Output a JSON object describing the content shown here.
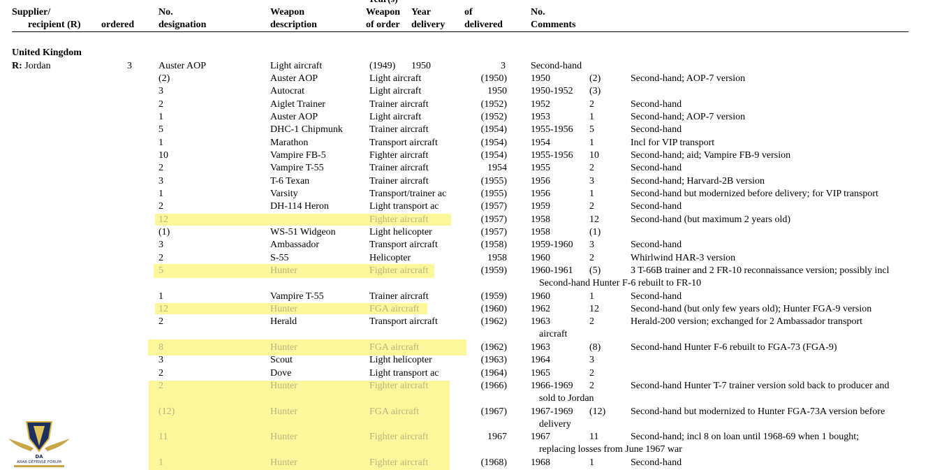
{
  "header": {
    "supplier": "Supplier/",
    "recipient": "recipient (R)",
    "ordered": "ordered",
    "no": "No.",
    "designation": "designation",
    "weapon": "Weapon",
    "description": "description",
    "years": "Year(s)",
    "weapon_of_order_1": "Weapon",
    "weapon_of_order_2": "of order",
    "year": "Year",
    "delivery": "delivery",
    "of": "of",
    "delivered": "delivered",
    "no2": "No.",
    "comments": "Comments"
  },
  "section": {
    "supplier": "United Kingdom",
    "recipient_prefix": "R:",
    "recipient": "Jordan"
  },
  "rows": [
    {
      "ordered": "3",
      "designation": "Auster AOP",
      "description": "Light aircraft",
      "order_year": "(1949)",
      "delivery": "1950",
      "delivered": "3",
      "comments": "Second-hand"
    },
    {
      "ordered": "(2)",
      "designation": "Auster AOP",
      "description": "Light aircraft",
      "order_year": "(1950)",
      "delivery": "1950",
      "delivered": "(2)",
      "comments": "Second-hand; AOP-7 version"
    },
    {
      "ordered": "3",
      "designation": "Autocrat",
      "description": "Light aircraft",
      "order_year": "1950",
      "delivery": "1950-1952",
      "delivered": "(3)",
      "comments": ""
    },
    {
      "ordered": "2",
      "designation": "Aiglet Trainer",
      "description": "Trainer aircraft",
      "order_year": "(1952)",
      "delivery": "1952",
      "delivered": "2",
      "comments": "Second-hand"
    },
    {
      "ordered": "1",
      "designation": "Auster AOP",
      "description": "Light aircraft",
      "order_year": "(1952)",
      "delivery": "1953",
      "delivered": "1",
      "comments": "Second-hand; AOP-7 version"
    },
    {
      "ordered": "5",
      "designation": "DHC-1 Chipmunk",
      "description": "Trainer aircraft",
      "order_year": "(1954)",
      "delivery": "1955-1956",
      "delivered": "5",
      "comments": "Second-hand"
    },
    {
      "ordered": "1",
      "designation": "Marathon",
      "description": "Transport aircraft",
      "order_year": "(1954)",
      "delivery": "1954",
      "delivered": "1",
      "comments": "Incl for VIP transport"
    },
    {
      "ordered": "10",
      "designation": "Vampire FB-5",
      "description": "Fighter aircraft",
      "order_year": "(1954)",
      "delivery": "1955-1956",
      "delivered": "10",
      "comments": "Second-hand; aid; Vampire FB-9 version"
    },
    {
      "ordered": "2",
      "designation": "Vampire T-55",
      "description": "Trainer aircraft",
      "order_year": "1954",
      "delivery": "1955",
      "delivered": "2",
      "comments": "Second-hand"
    },
    {
      "ordered": "3",
      "designation": "T-6 Texan",
      "description": "Trainer aircraft",
      "order_year": "(1955)",
      "delivery": "1956",
      "delivered": "3",
      "comments": "Second-hand; Harvard-2B version"
    },
    {
      "ordered": "1",
      "designation": "Varsity",
      "description": "Transport/trainer ac",
      "order_year": "(1955)",
      "delivery": "1956",
      "delivered": "1",
      "comments": "Second-hand but modernized before delivery; for VIP transport"
    },
    {
      "ordered": "2",
      "designation": "DH-114 Heron",
      "description": "Light transport ac",
      "order_year": "(1957)",
      "delivery": "1959",
      "delivered": "2",
      "comments": "Second-hand"
    },
    {
      "ordered": "12",
      "designation": "",
      "description": "Fighter aircraft",
      "order_year": "(1957)",
      "delivery": "1958",
      "delivered": "12",
      "comments": "Second-hand (but maximum 2 years old)"
    },
    {
      "ordered": "(1)",
      "designation": "WS-51 Widgeon",
      "description": "Light helicopter",
      "order_year": "(1957)",
      "delivery": "1958",
      "delivered": "(1)",
      "comments": ""
    },
    {
      "ordered": "3",
      "designation": "Ambassador",
      "description": "Transport aircraft",
      "order_year": "(1958)",
      "delivery": "1959-1960",
      "delivered": "3",
      "comments": "Second-hand"
    },
    {
      "ordered": "2",
      "designation": "S-55",
      "description": "Helicopter",
      "order_year": "1958",
      "delivery": "1960",
      "delivered": "2",
      "comments": "Whirlwind HAR-3 version"
    },
    {
      "ordered": "5",
      "designation": "Hunter",
      "description": "Fighter aircraft",
      "order_year": "(1959)",
      "delivery": "1960-1961",
      "delivered": "(5)",
      "comments": "3 T-66B trainer and 2 FR-10 reconnaissance version; possibly incl",
      "comments2": "Second-hand Hunter F-6 rebuilt to FR-10"
    },
    {
      "ordered": "1",
      "designation": "Vampire T-55",
      "description": "Trainer aircraft",
      "order_year": "(1959)",
      "delivery": "1960",
      "delivered": "1",
      "comments": "Second-hand"
    },
    {
      "ordered": "12",
      "designation": "Hunter",
      "description": "FGA aircraft",
      "order_year": "(1960)",
      "delivery": "1962",
      "delivered": "12",
      "comments": "Second-hand (but only few years old); Hunter FGA-9 version"
    },
    {
      "ordered": "2",
      "designation": "Herald",
      "description": "Transport aircraft",
      "order_year": "(1962)",
      "delivery": "1963",
      "delivered": "2",
      "comments": "Herald-200 version; exchanged for 2 Ambassador transport",
      "comments2": "aircraft"
    },
    {
      "ordered": "8",
      "designation": "Hunter",
      "description": "FGA aircraft",
      "order_year": "(1962)",
      "delivery": "1963",
      "delivered": "(8)",
      "comments": "Second-hand Hunter F-6 rebuilt to FGA-73 (FGA-9)"
    },
    {
      "ordered": "3",
      "designation": "Scout",
      "description": "Light helicopter",
      "order_year": "(1963)",
      "delivery": "1964",
      "delivered": "3",
      "comments": ""
    },
    {
      "ordered": "2",
      "designation": "Dove",
      "description": "Light transport ac",
      "order_year": "(1964)",
      "delivery": "1965",
      "delivered": "2",
      "comments": ""
    },
    {
      "ordered": "2",
      "designation": "Hunter",
      "description": "Fighter aircraft",
      "order_year": "(1966)",
      "delivery": "1966-1969",
      "delivered": "2",
      "comments": "Second-hand Hunter T-7 trainer version sold back to producer and",
      "comments2": "sold to Jordan"
    },
    {
      "ordered": "(12)",
      "designation": "Hunter",
      "description": "FGA aircraft",
      "order_year": "(1967)",
      "delivery": "1967-1969",
      "delivered": "(12)",
      "comments": "Second-hand but modernized to Hunter FGA-73A version before",
      "comments2": "delivery"
    },
    {
      "ordered": "11",
      "designation": "Hunter",
      "description": "Fighter aircraft",
      "order_year": "1967",
      "delivery": "1967",
      "delivered": "11",
      "comments": "Second-hand; incl 8 on loan until 1968-69 when 1 bought;",
      "comments2": "replacing losses from June 1967 war"
    },
    {
      "ordered": "1",
      "designation": "Hunter",
      "description": "Fighter aircraft",
      "order_year": "(1968)",
      "delivery": "1968",
      "delivered": "1",
      "comments": "Second-hand"
    }
  ],
  "highlight_color": "#fdf79c",
  "logo": {
    "name": "ARAB DEFENSE FORUM",
    "initials": "DA"
  }
}
